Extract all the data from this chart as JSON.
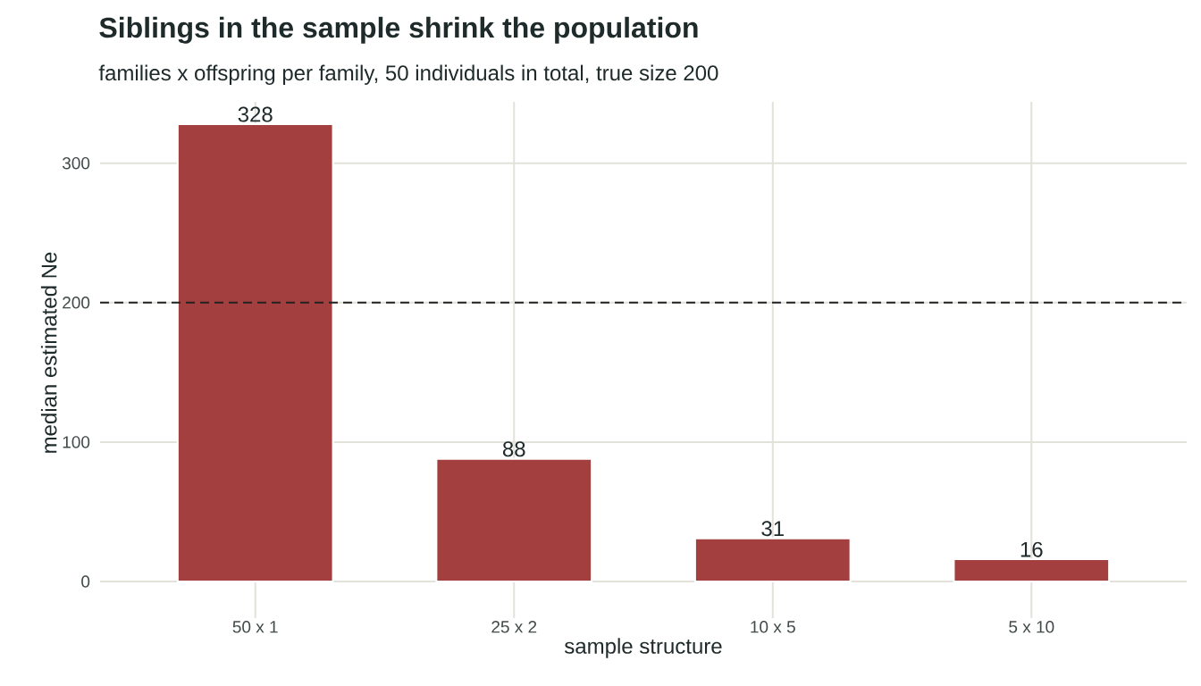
{
  "chart_data": {
    "type": "bar",
    "title": "Siblings in the sample shrink the population",
    "subtitle": "families x offspring per family, 50 individuals in total, true size 200",
    "xlabel": "sample structure",
    "ylabel": "median estimated Ne",
    "categories": [
      "50 x 1",
      "25 x 2",
      "10 x 5",
      "5 x 10"
    ],
    "values": [
      328,
      88,
      31,
      16
    ],
    "color": "#a33f3e",
    "ylim": [
      -16,
      344
    ],
    "yticks": [
      0,
      100,
      200,
      300
    ],
    "grid": true,
    "data_labels": true,
    "ref_lines": [
      {
        "axis": "y",
        "value": 200,
        "color": "#222222",
        "line_style": "dashed"
      }
    ]
  }
}
